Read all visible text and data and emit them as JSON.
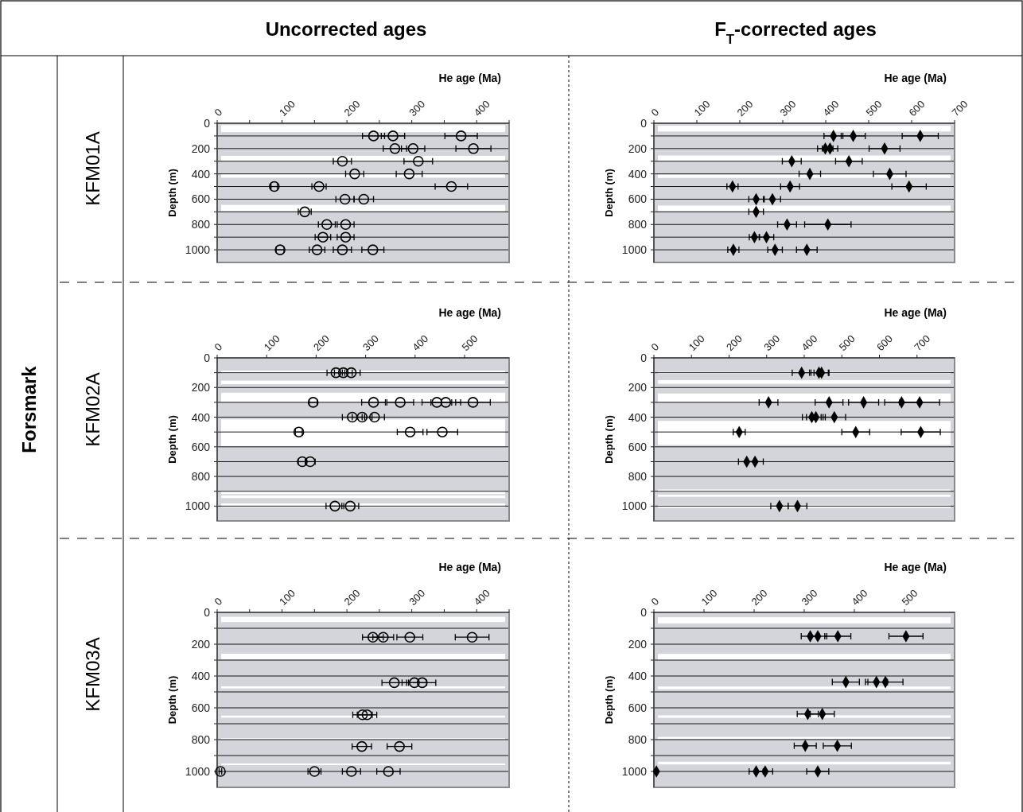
{
  "chart_data": [
    {
      "type": "scatter",
      "xlabel": "He age (Ma)",
      "ylabel": "Depth (m)",
      "annotations": [
        "Uncorrected ages",
        "Forsmark",
        "KFM01A"
      ],
      "marker": "circle",
      "grid": "y",
      "xlim": [
        0,
        450
      ],
      "ylim": [
        1100,
        0
      ],
      "xticks": [
        0,
        {
          "value": 50,
          "label": null
        },
        100,
        {
          "value": 150,
          "label": null
        },
        200,
        {
          "value": 250,
          "label": null
        },
        300,
        {
          "value": 350,
          "label": null
        },
        400,
        {
          "value": 450,
          "label": null
        }
      ],
      "yticks": [
        0,
        {
          "value": 100,
          "label": null
        },
        200,
        {
          "value": 300,
          "label": null
        },
        400,
        {
          "value": 500,
          "label": null
        },
        600,
        {
          "value": 700,
          "label": null
        },
        800,
        {
          "value": 900,
          "label": null
        },
        1000
      ],
      "bands": [
        {
          "axis": "y",
          "from": 15,
          "to": 70,
          "color": "#ffffff"
        },
        {
          "axis": "y",
          "from": 257,
          "to": 298,
          "color": "#ffffff"
        },
        {
          "axis": "y",
          "from": 402,
          "to": 430,
          "color": "#ffffff"
        },
        {
          "axis": "y",
          "from": 645,
          "to": 695,
          "color": "#ffffff"
        }
      ],
      "series": [
        {
          "color": "#000000",
          "x": [
            241,
            271,
            376,
            274,
            302,
            395,
            193,
            310,
            212,
            296,
            88,
            157,
            361,
            197,
            226,
            135,
            169,
            198,
            163,
            198,
            97,
            154,
            193,
            240
          ],
          "values": [
            100,
            100,
            100,
            200,
            200,
            200,
            300,
            300,
            400,
            400,
            500,
            500,
            500,
            600,
            600,
            700,
            800,
            800,
            900,
            900,
            1000,
            1000,
            1000,
            1000
          ],
          "xerrors": [
            17,
            18,
            25,
            18,
            18,
            27,
            14,
            22,
            14,
            20,
            5,
            11,
            25,
            14,
            15,
            10,
            13,
            13,
            12,
            13,
            6,
            12,
            14,
            17
          ]
        }
      ]
    },
    {
      "type": "scatter",
      "xlabel": "He age (Ma)",
      "ylabel": "Depth (m)",
      "annotations": [
        "F$_{T}$-corrected ages"
      ],
      "marker": "diamond",
      "grid": "y",
      "xlim": [
        0,
        700
      ],
      "ylim": [
        1100,
        0
      ],
      "xticks": [
        0,
        100,
        200,
        300,
        400,
        500,
        600,
        700
      ],
      "yticks": [
        0,
        {
          "value": 100,
          "label": null
        },
        200,
        {
          "value": 300,
          "label": null
        },
        400,
        {
          "value": 500,
          "label": null
        },
        600,
        {
          "value": 700,
          "label": null
        },
        800,
        {
          "value": 900,
          "label": null
        },
        1000
      ],
      "bands": [
        {
          "axis": "y",
          "from": 20,
          "to": 65,
          "color": "#ffffff"
        },
        {
          "axis": "y",
          "from": 255,
          "to": 298,
          "color": "#ffffff"
        },
        {
          "axis": "y",
          "from": 405,
          "to": 432,
          "color": "#ffffff"
        },
        {
          "axis": "y",
          "from": 650,
          "to": 695,
          "color": "#ffffff"
        }
      ],
      "series": [
        {
          "color": "#000000",
          "x": [
            418,
            464,
            620,
            399,
            410,
            537,
            321,
            454,
            363,
            549,
            183,
            317,
            594,
            238,
            276,
            238,
            310,
            405,
            234,
            262,
            185,
            282,
            356
          ],
          "values": [
            100,
            100,
            100,
            200,
            200,
            200,
            300,
            300,
            400,
            400,
            500,
            500,
            500,
            600,
            600,
            700,
            800,
            800,
            900,
            900,
            1000,
            1000,
            1000
          ],
          "xerrors": [
            22,
            28,
            42,
            18,
            18,
            36,
            22,
            31,
            25,
            38,
            13,
            22,
            40,
            17,
            19,
            17,
            22,
            54,
            12,
            17,
            13,
            17,
            24
          ]
        }
      ]
    },
    {
      "type": "scatter",
      "xlabel": "He age (Ma)",
      "ylabel": "Depth (m)",
      "annotations": [
        "KFM02A"
      ],
      "marker": "circle",
      "grid": "y",
      "xlim": [
        0,
        590
      ],
      "ylim": [
        1100,
        0
      ],
      "xticks": [
        0,
        100,
        200,
        300,
        400,
        500
      ],
      "yticks": [
        0,
        {
          "value": 100,
          "label": null
        },
        200,
        {
          "value": 300,
          "label": null
        },
        400,
        {
          "value": 500,
          "label": null
        },
        600,
        {
          "value": 700,
          "label": null
        },
        800,
        {
          "value": 900,
          "label": null
        },
        1000
      ],
      "bands": [
        {
          "axis": "y",
          "from": 86,
          "to": 104,
          "color": "#ffffff"
        },
        {
          "axis": "y",
          "from": 153,
          "to": 177,
          "color": "#ffffff"
        },
        {
          "axis": "y",
          "from": 235,
          "to": 298,
          "color": "#ffffff"
        },
        {
          "axis": "y",
          "from": 415,
          "to": 595,
          "color": "#ffffff"
        },
        {
          "axis": "y",
          "from": 897,
          "to": 919,
          "color": "#ffffff"
        },
        {
          "axis": "y",
          "from": 928,
          "to": 946,
          "color": "#ffffff"
        },
        {
          "axis": "y",
          "from": 982,
          "to": 1009,
          "color": "#ffffff"
        }
      ],
      "series": [
        {
          "color": "#000000",
          "x": [
            240,
            255,
            271,
            194,
            316,
            370,
            444,
            462,
            517,
            273,
            293,
            318,
            165,
            390,
            455,
            172,
            188,
            238,
            269
          ],
          "values": [
            100,
            100,
            100,
            300,
            300,
            300,
            300,
            300,
            300,
            400,
            400,
            400,
            500,
            500,
            500,
            700,
            700,
            1000,
            1000
          ],
          "xerrors": [
            18,
            18,
            18,
            8,
            24,
            27,
            30,
            30,
            35,
            20,
            20,
            20,
            7,
            26,
            31,
            8,
            10,
            18,
            17
          ]
        }
      ]
    },
    {
      "type": "scatter",
      "xlabel": "He age (Ma)",
      "ylabel": "Depth (m)",
      "marker": "diamond",
      "grid": "y",
      "xlim": [
        0,
        800
      ],
      "ylim": [
        1100,
        0
      ],
      "xticks": [
        0,
        100,
        200,
        300,
        400,
        500,
        600,
        700
      ],
      "yticks": [
        0,
        {
          "value": 100,
          "label": null
        },
        200,
        {
          "value": 300,
          "label": null
        },
        400,
        {
          "value": 500,
          "label": null
        },
        600,
        {
          "value": 700,
          "label": null
        },
        800,
        {
          "value": 900,
          "label": null
        },
        1000
      ],
      "bands": [
        {
          "axis": "y",
          "from": 94,
          "to": 107,
          "color": "#ffffff"
        },
        {
          "axis": "y",
          "from": 150,
          "to": 175,
          "color": "#ffffff"
        },
        {
          "axis": "y",
          "from": 240,
          "to": 298,
          "color": "#ffffff"
        },
        {
          "axis": "y",
          "from": 425,
          "to": 587,
          "color": "#ffffff"
        },
        {
          "axis": "y",
          "from": 888,
          "to": 905,
          "color": "#ffffff"
        },
        {
          "axis": "y",
          "from": 923,
          "to": 937,
          "color": "#ffffff"
        },
        {
          "axis": "y",
          "from": 992,
          "to": 1012,
          "color": "#ffffff"
        }
      ],
      "series": [
        {
          "color": "#000000",
          "x": [
            393,
            439,
            446,
            305,
            466,
            558,
            659,
            707,
            420,
            431,
            480,
            227,
            537,
            710,
            247,
            269,
            334,
            382
          ],
          "values": [
            100,
            100,
            100,
            300,
            300,
            300,
            300,
            300,
            400,
            400,
            400,
            500,
            500,
            500,
            700,
            700,
            1000,
            1000
          ],
          "xerrors": [
            25,
            25,
            20,
            25,
            37,
            40,
            45,
            53,
            25,
            25,
            30,
            16,
            37,
            52,
            22,
            22,
            23,
            25
          ]
        }
      ]
    },
    {
      "type": "scatter",
      "xlabel": "He age (Ma)",
      "ylabel": "Depth (m)",
      "annotations": [
        "KFM03A"
      ],
      "marker": "circle",
      "grid": "y",
      "xlim": [
        0,
        450
      ],
      "ylim": [
        1100,
        0
      ],
      "xticks": [
        0,
        {
          "value": 50,
          "label": null
        },
        100,
        {
          "value": 150,
          "label": null
        },
        200,
        {
          "value": 250,
          "label": null
        },
        300,
        {
          "value": 350,
          "label": null
        },
        400,
        {
          "value": 450,
          "label": null
        }
      ],
      "yticks": [
        0,
        {
          "value": 100,
          "label": null
        },
        200,
        {
          "value": 300,
          "label": null
        },
        400,
        {
          "value": 500,
          "label": null
        },
        600,
        {
          "value": 700,
          "label": null
        },
        800,
        {
          "value": 900,
          "label": null
        },
        1000
      ],
      "bands": [
        {
          "axis": "y",
          "from": 28,
          "to": 61,
          "color": "#ffffff"
        },
        {
          "axis": "y",
          "from": 260,
          "to": 296,
          "color": "#ffffff"
        },
        {
          "axis": "y",
          "from": 465,
          "to": 478,
          "color": "#ffffff"
        },
        {
          "axis": "y",
          "from": 649,
          "to": 662,
          "color": "#ffffff"
        },
        {
          "axis": "y",
          "from": 791,
          "to": 798,
          "color": "#ffffff"
        },
        {
          "axis": "y",
          "from": 950,
          "to": 960,
          "color": "#ffffff"
        }
      ],
      "series": [
        {
          "color": "#000000",
          "x": [
            240,
            256,
            297,
            393,
            273,
            304,
            316,
            224,
            231,
            223,
            281,
            5,
            150,
            207,
            264
          ],
          "values": [
            156,
            156,
            156,
            156,
            442,
            442,
            442,
            644,
            644,
            843,
            843,
            1000,
            1000,
            1000,
            1000
          ],
          "xerrors": [
            16,
            16,
            20,
            26,
            19,
            19,
            21,
            15,
            15,
            15,
            19,
            2,
            10,
            14,
            18
          ]
        }
      ]
    },
    {
      "type": "scatter",
      "xlabel": "He age (Ma)",
      "ylabel": "Depth (m)",
      "marker": "diamond",
      "grid": "y",
      "xlim": [
        0,
        600
      ],
      "ylim": [
        1100,
        0
      ],
      "xticks": [
        0,
        100,
        200,
        300,
        400,
        500
      ],
      "yticks": [
        0,
        {
          "value": 100,
          "label": null
        },
        200,
        {
          "value": 300,
          "label": null
        },
        400,
        {
          "value": 500,
          "label": null
        },
        600,
        {
          "value": 700,
          "label": null
        },
        800,
        {
          "value": 900,
          "label": null
        },
        1000
      ],
      "bands": [
        {
          "axis": "y",
          "from": 31,
          "to": 69,
          "color": "#ffffff"
        },
        {
          "axis": "y",
          "from": 261,
          "to": 299,
          "color": "#ffffff"
        },
        {
          "axis": "y",
          "from": 466,
          "to": 483,
          "color": "#ffffff"
        },
        {
          "axis": "y",
          "from": 647,
          "to": 663,
          "color": "#ffffff"
        },
        {
          "axis": "y",
          "from": 783,
          "to": 795,
          "color": "#ffffff"
        },
        {
          "axis": "y",
          "from": 939,
          "to": 956,
          "color": "#ffffff"
        }
      ],
      "series": [
        {
          "color": "#000000",
          "x": [
            312,
            327,
            367,
            503,
            383,
            444,
            462,
            307,
            336,
            302,
            366,
            5,
            204,
            222,
            327
          ],
          "values": [
            150,
            150,
            150,
            150,
            438,
            438,
            438,
            639,
            639,
            839,
            839,
            1000,
            1000,
            1000,
            1000
          ],
          "xerrors": [
            18,
            18,
            26,
            34,
            27,
            22,
            35,
            21,
            24,
            22,
            28,
            2,
            14,
            15,
            22
          ]
        }
      ]
    }
  ]
}
